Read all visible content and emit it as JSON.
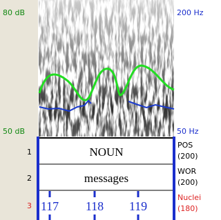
{
  "spectrogram": {
    "left_top": "80 dB",
    "left_bottom": "50 dB",
    "right_top": "200 Hz",
    "right_bottom": "50 Hz"
  },
  "tiers": [
    {
      "number": "1",
      "name": "POS",
      "count": "(200)",
      "intervals": [
        "NOUN"
      ]
    },
    {
      "number": "2",
      "name": "WOR",
      "count": "(200)",
      "intervals": [
        "messages"
      ]
    },
    {
      "number": "3",
      "name": "Nuclei",
      "count": "(180)",
      "points": [
        "117",
        "118",
        "119"
      ]
    }
  ]
}
